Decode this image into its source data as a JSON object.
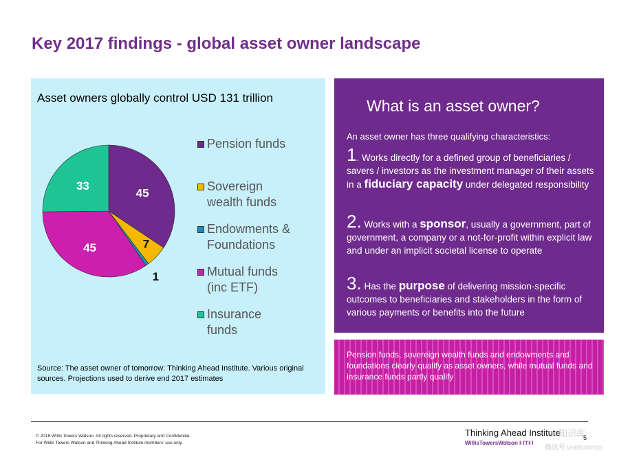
{
  "title": "Key 2017 findings - global asset owner landscape",
  "left_panel": {
    "heading": "Asset owners globally control USD 131 trillion",
    "source": "Source: The asset owner of tomorrow: Thinking Ahead Institute. Various original sources. Projections used to derive end 2017 estimates"
  },
  "chart_data": {
    "type": "pie",
    "title": "Asset owners globally control USD 131 trillion",
    "labels": [
      "Pension funds",
      "Sovereign wealth funds",
      "Endowments & Foundations",
      "Mutual funds (inc ETF)",
      "Insurance funds"
    ],
    "values": [
      45,
      7,
      1,
      45,
      33
    ],
    "data_labels": [
      "45",
      "7",
      "1",
      "45",
      "33"
    ],
    "colors": [
      "#6f2a8d",
      "#f5b800",
      "#1a8fb5",
      "#cc1fae",
      "#1fc495"
    ],
    "legend_position": "right"
  },
  "legend": [
    {
      "line1": "Pension funds",
      "line2": ""
    },
    {
      "line1": "Sovereign",
      "line2": "wealth funds"
    },
    {
      "line1": "Endowments &",
      "line2": "Foundations"
    },
    {
      "line1": "Mutual funds",
      "line2": "(inc ETF)"
    },
    {
      "line1": "Insurance",
      "line2": "funds"
    }
  ],
  "right_panel": {
    "heading": "What is an asset owner?",
    "intro": "An asset owner has three qualifying characteristics:",
    "p1_num": "1",
    "p1_a": ". Works directly for a defined group of beneficiaries / savers / investors as the investment manager of their assets in a ",
    "p1_strong": "fiduciary capacity",
    "p1_b": " under delegated responsibility",
    "p2_num": "2.",
    "p2_a": " Works with a ",
    "p2_strong": "sponsor",
    "p2_b": ", usually a government, part of government, a company or a not-for-profit within explicit law and under an implicit societal license to operate",
    "p3_num": "3.",
    "p3_a": "  Has the ",
    "p3_strong": "purpose",
    "p3_b": " of delivering mission-specific outcomes to beneficiaries and stakeholders in the form of various payments or benefits into the future"
  },
  "note": "Pension funds, sovereign wealth funds and endowments and foundations clearly qualify as asset owners, while mutual funds and insurance funds partly qualify",
  "footer": {
    "copyright_1": "© 2018 Willis Towers Watson. All rights reserved. Proprietary and Confidential.",
    "copyright_2": "For Willis Towers Watson and Thinking Ahead Institute members' use only.",
    "brand": "Thinking Ahead Institute",
    "sub_brand": "WillisTowersWatson",
    "sub_mark": "I·I'I'I·I",
    "page": "5",
    "watermark_1": "知识库",
    "watermark_2": "微信号:useitcomcn"
  }
}
